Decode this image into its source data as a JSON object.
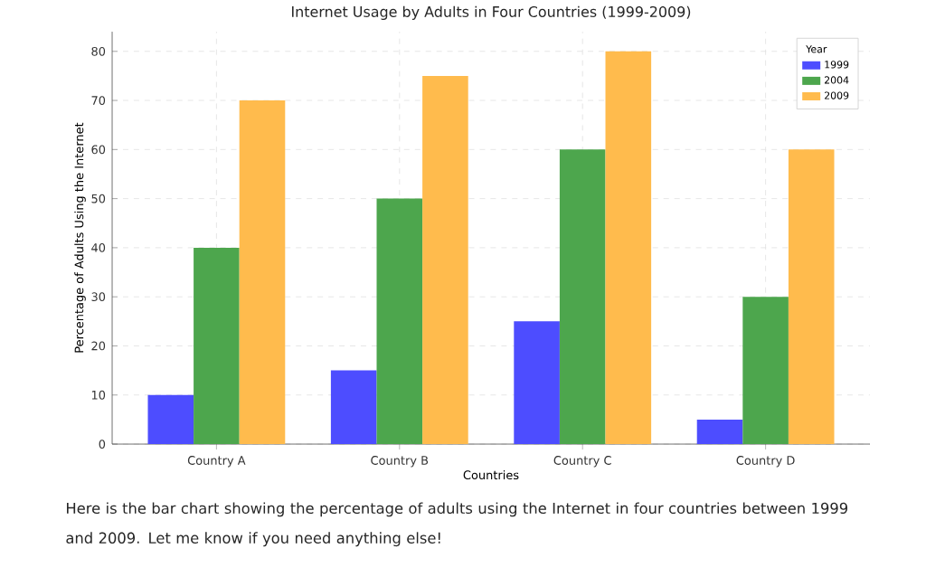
{
  "chart_data": {
    "type": "bar",
    "title": "Internet Usage by Adults in Four Countries (1999-2009)",
    "xlabel": "Countries",
    "ylabel": "Percentage of Adults Using the Internet",
    "categories": [
      "Country A",
      "Country B",
      "Country C",
      "Country D"
    ],
    "series": [
      {
        "name": "1999",
        "color": "#4d4dff",
        "values": [
          10,
          15,
          25,
          5
        ]
      },
      {
        "name": "2004",
        "color": "#4da64d",
        "values": [
          40,
          50,
          60,
          30
        ]
      },
      {
        "name": "2009",
        "color": "#ffbb4d",
        "values": [
          70,
          75,
          80,
          60
        ]
      }
    ],
    "legend_title": "Year",
    "legend": "top right",
    "grid": true,
    "ylim": [
      0,
      84
    ],
    "yticks": [
      0,
      10,
      20,
      30,
      40,
      50,
      60,
      70,
      80
    ],
    "annotations": [
      "Here is the bar chart showing the percentage of adults using the Internet in four countries between 1999 and 2009. Let me know if you need anything else!"
    ]
  }
}
